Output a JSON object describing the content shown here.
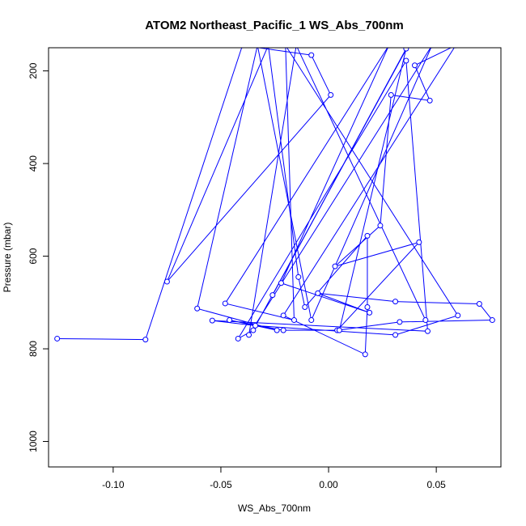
{
  "chart_data": {
    "type": "line",
    "title": "ATOM2 Northeast_Pacific_1 WS_Abs_700nm",
    "xlabel": "WS_Abs_700nm",
    "ylabel": "Pressure (mbar)",
    "xlim": [
      -0.13,
      0.08
    ],
    "ylim": [
      1055,
      150
    ],
    "y_reversed": true,
    "grid": false,
    "x_ticks": [
      -0.1,
      -0.05,
      0.0,
      0.05
    ],
    "x_tick_labels": [
      "-0.10",
      "-0.05",
      "0.00",
      "0.05"
    ],
    "y_ticks": [
      200,
      400,
      600,
      800,
      1000
    ],
    "y_tick_labels": [
      "200",
      "400",
      "600",
      "800",
      "1000"
    ],
    "series": [
      {
        "color": "#0000ff",
        "x": [
          -0.126,
          -0.085,
          -0.04,
          -0.008,
          0.001,
          -0.075,
          -0.028,
          -0.014,
          -0.011,
          0.018,
          0.018,
          0.017,
          -0.021,
          0.059,
          0.04,
          0.047,
          0.029,
          0.024,
          0.003,
          0.042,
          0.004,
          0.033,
          0.076,
          0.07,
          0.031,
          -0.005,
          0.019,
          -0.022,
          0.028,
          -0.048,
          -0.016,
          -0.02,
          0.06,
          0.031,
          -0.034,
          -0.054,
          0.046,
          0.036,
          -0.042,
          -0.035,
          0.037,
          -0.026,
          0.036,
          0.005,
          -0.021,
          -0.046,
          -0.024,
          -0.061,
          -0.033,
          -0.008,
          0.048,
          -0.037,
          -0.015,
          0.045
        ],
        "y": [
          778,
          780,
          145,
          166,
          252,
          655,
          145,
          645,
          710,
          556,
          710,
          812,
          728,
          145,
          188,
          264,
          252,
          534,
          622,
          570,
          760,
          742,
          738,
          703,
          698,
          680,
          722,
          658,
          145,
          702,
          738,
          145,
          728,
          770,
          750,
          739,
          762,
          178,
          778,
          760,
          145,
          684,
          152,
          760,
          760,
          738,
          760,
          713,
          145,
          738,
          145,
          770,
          145,
          738
        ]
      }
    ]
  }
}
